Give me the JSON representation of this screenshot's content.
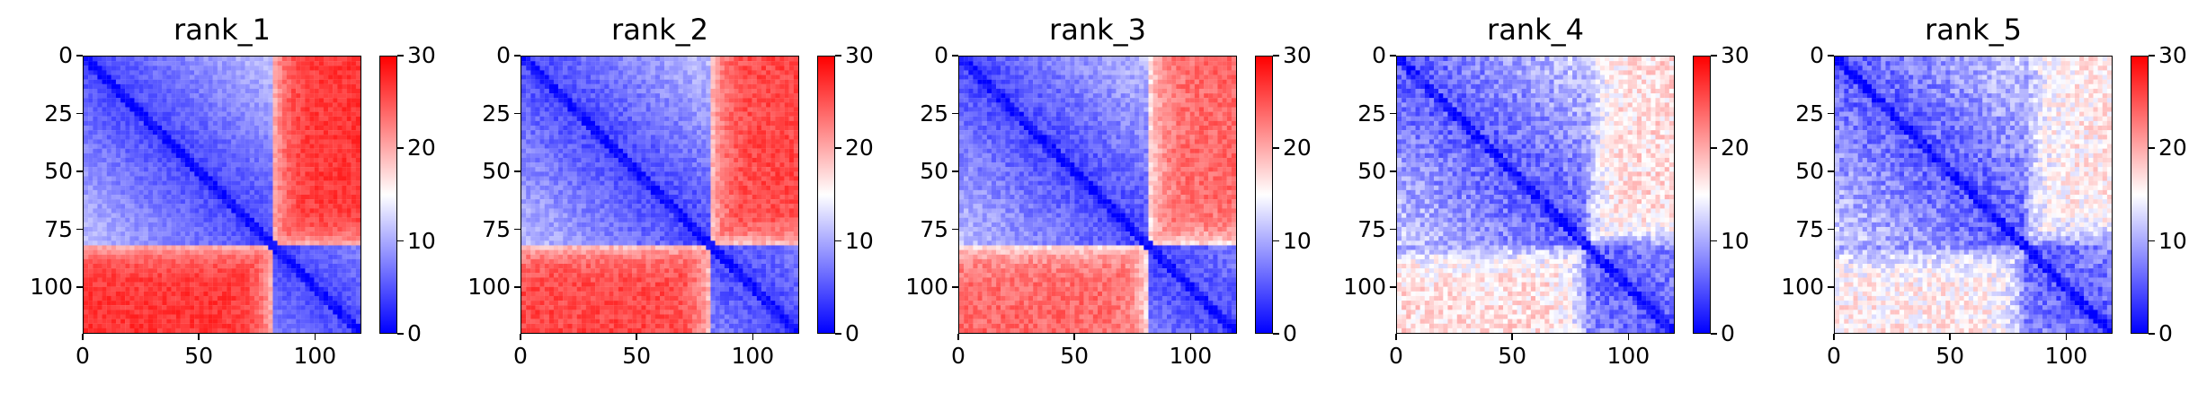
{
  "colormap": {
    "name": "bwr",
    "low": "#0000ff",
    "mid": "#ffffff",
    "high": "#ff0000"
  },
  "chart_data": [
    {
      "type": "heatmap",
      "title": "rank_1",
      "size": 120,
      "domain_boundary": 82,
      "intra_domain_value": 4,
      "inter_domain_value": 27,
      "noise": 1.5,
      "xticks": [
        0,
        50,
        100
      ],
      "yticks": [
        0,
        25,
        50,
        75,
        100
      ],
      "colorbar": {
        "ticks": [
          0,
          10,
          20,
          30
        ],
        "range": [
          0,
          30
        ]
      }
    },
    {
      "type": "heatmap",
      "title": "rank_2",
      "size": 120,
      "domain_boundary": 82,
      "intra_domain_value": 4,
      "inter_domain_value": 26,
      "noise": 1.8,
      "xticks": [
        0,
        50,
        100
      ],
      "yticks": [
        0,
        25,
        50,
        75,
        100
      ],
      "colorbar": {
        "ticks": [
          0,
          10,
          20,
          30
        ],
        "range": [
          0,
          30
        ]
      }
    },
    {
      "type": "heatmap",
      "title": "rank_3",
      "size": 120,
      "domain_boundary": 82,
      "intra_domain_value": 4,
      "inter_domain_value": 24,
      "noise": 2,
      "xticks": [
        0,
        50,
        100
      ],
      "yticks": [
        0,
        25,
        50,
        75,
        100
      ],
      "colorbar": {
        "ticks": [
          0,
          10,
          20,
          30
        ],
        "range": [
          0,
          30
        ]
      }
    },
    {
      "type": "heatmap",
      "title": "rank_4",
      "size": 120,
      "domain_boundary": 82,
      "intra_domain_value": 5,
      "inter_domain_value": 17,
      "noise": 3,
      "xticks": [
        0,
        50,
        100
      ],
      "yticks": [
        0,
        25,
        50,
        75,
        100
      ],
      "colorbar": {
        "ticks": [
          0,
          10,
          20,
          30
        ],
        "range": [
          0,
          30
        ]
      }
    },
    {
      "type": "heatmap",
      "title": "rank_5",
      "size": 120,
      "domain_boundary": 82,
      "intra_domain_value": 5,
      "inter_domain_value": 16,
      "noise": 3,
      "xticks": [
        0,
        50,
        100
      ],
      "yticks": [
        0,
        25,
        50,
        75,
        100
      ],
      "colorbar": {
        "ticks": [
          0,
          10,
          20,
          30
        ],
        "range": [
          0,
          30
        ]
      }
    }
  ]
}
